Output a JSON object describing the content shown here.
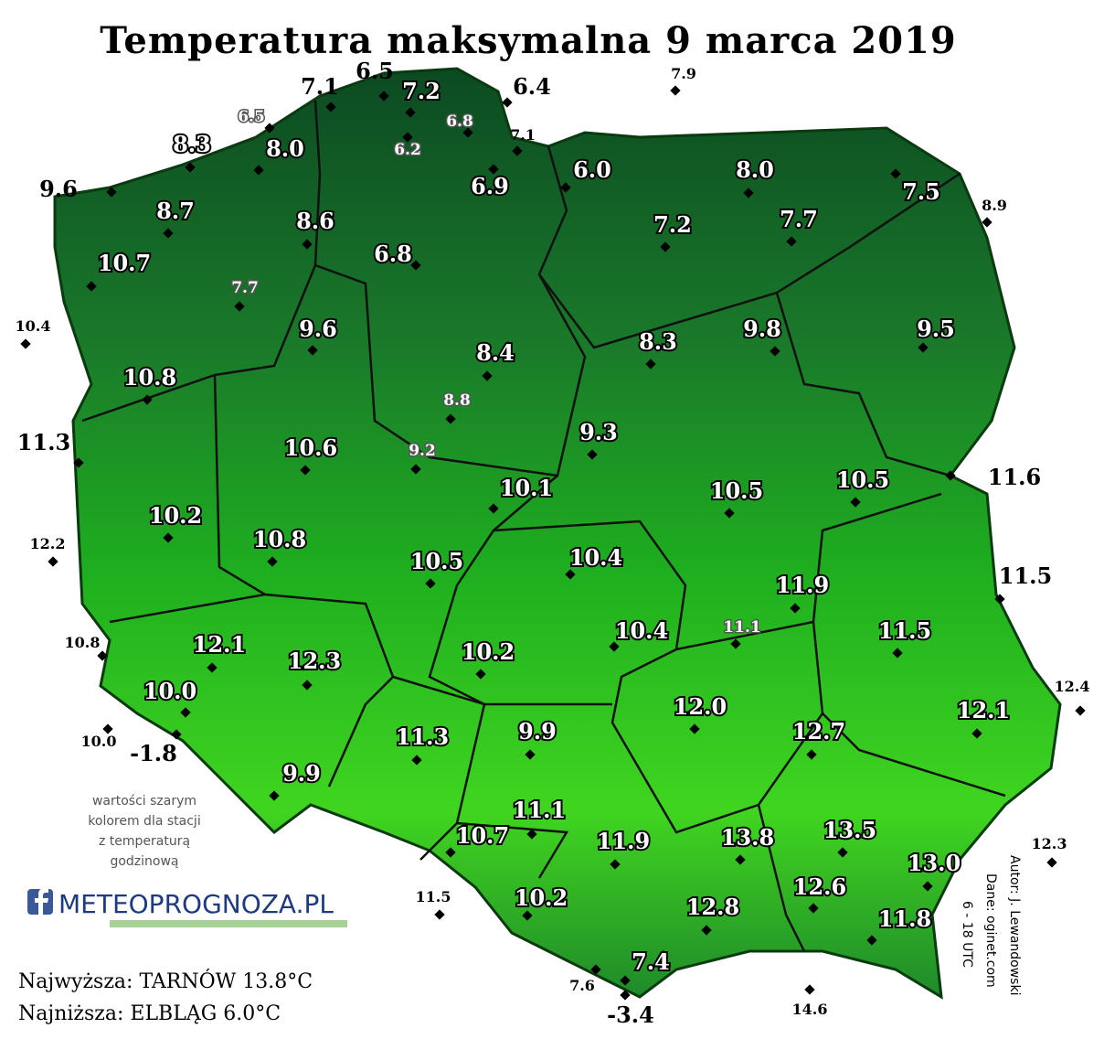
{
  "title": "Temperatura maksymalna 9 marca 2019",
  "stations": [
    "7.1",
    "6.5",
    "7.2",
    "6.4",
    "7.9",
    "6.5",
    "6.8",
    "6.2",
    "7.1",
    "8.3",
    "8.0",
    "9.6",
    "6.9",
    "6.0",
    "8.0",
    "7.5",
    "8.9",
    "8.7",
    "8.6",
    "7.2",
    "7.7",
    "6.8",
    "10.7",
    "7.7",
    "10.4",
    "9.6",
    "8.4",
    "8.3",
    "9.8",
    "9.5",
    "10.8",
    "8.8",
    "11.3",
    "10.6",
    "9.2",
    "9.3",
    "10.1",
    "10.5",
    "10.5",
    "11.6",
    "10.2",
    "12.2",
    "10.8",
    "10.5",
    "10.4",
    "11.5",
    "11.9",
    "11.1",
    "11.5",
    "10.4",
    "10.8",
    "12.1",
    "12.3",
    "10.2",
    "10.0",
    "12.4",
    "12.0",
    "12.1",
    "10.0",
    "-1.8",
    "12.7",
    "11.3",
    "9.9",
    "9.9",
    "11.1",
    "10.7",
    "11.9",
    "13.8",
    "13.5",
    "12.3",
    "13.0",
    "11.5",
    "10.2",
    "12.6",
    "12.8",
    "11.8",
    "7.4",
    "7.6",
    "-3.4",
    "14.6"
  ],
  "note": [
    "wartości szarym",
    "kolorem dla stacji",
    "z temperaturą",
    "godzinową"
  ],
  "logo": "METEOPROGNOZA.PL",
  "highest": "Najwyższa: TARNÓW 13.8°C",
  "lowest": "Najniższa: ELBLĄG 6.0°C",
  "credits": [
    "Autor: J. Lewandowski",
    "Dane: oginet.com",
    "6 - 18 UTC"
  ]
}
